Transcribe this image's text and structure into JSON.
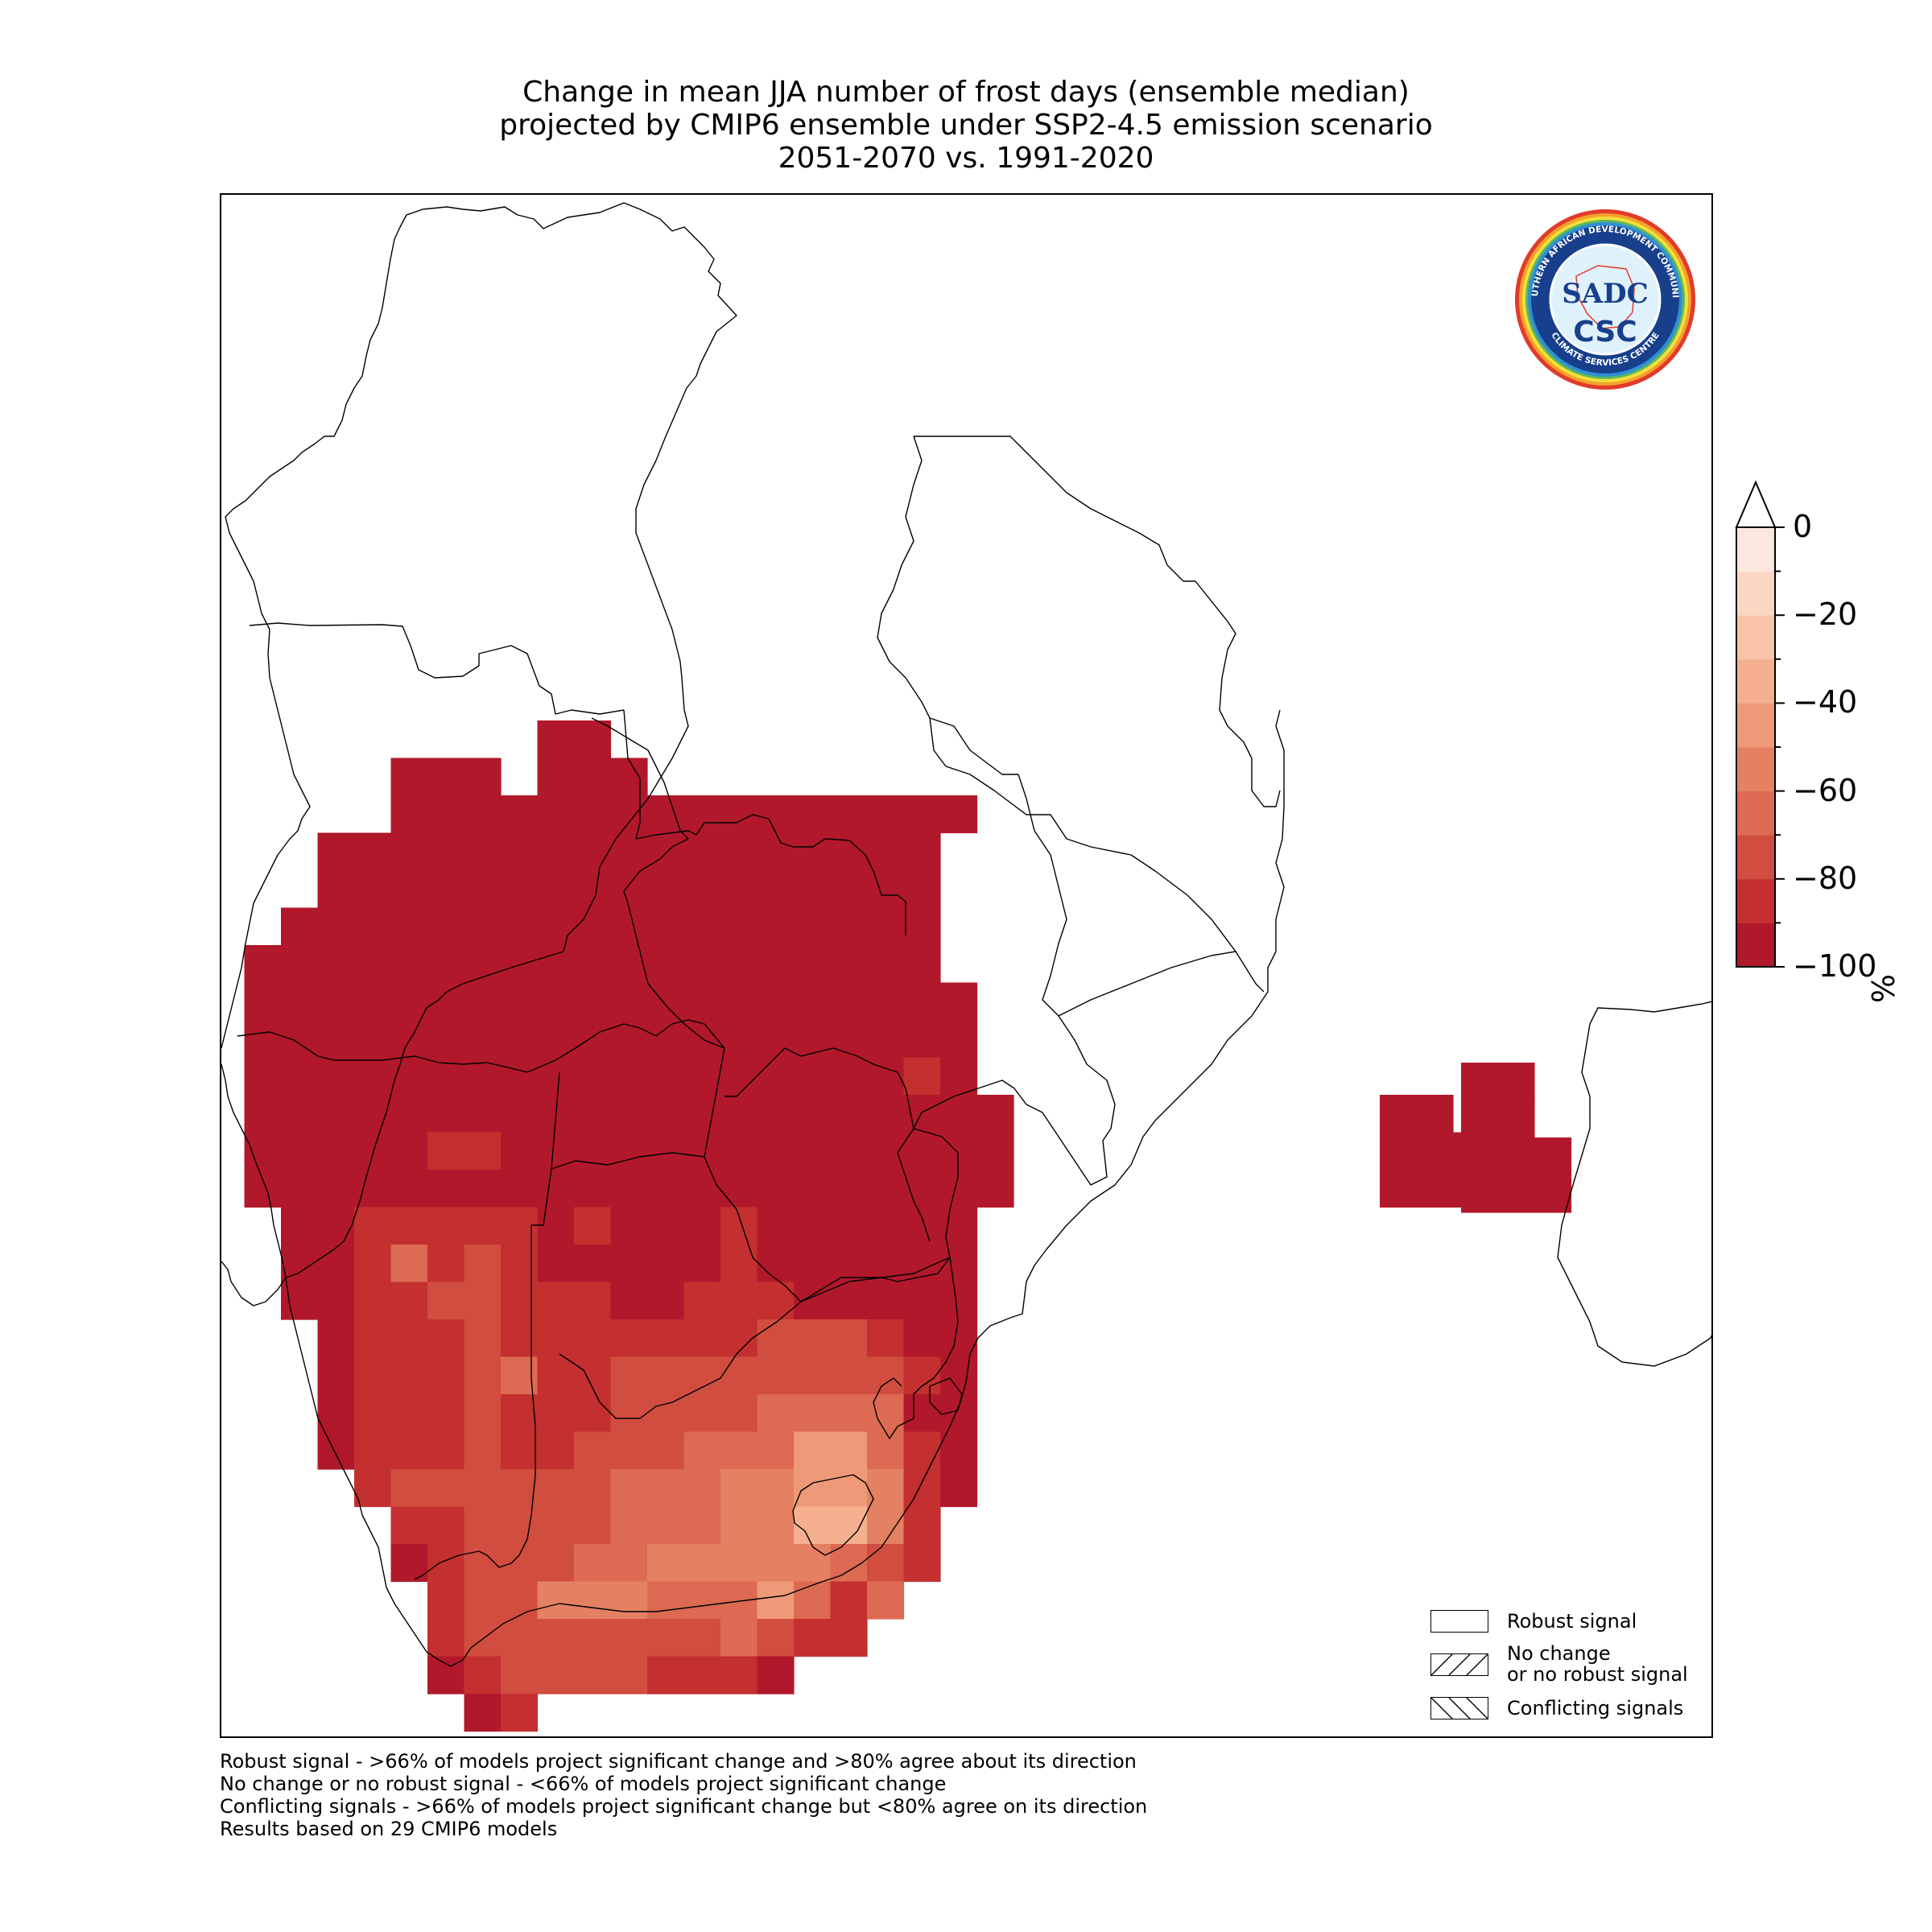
{
  "title": {
    "line1": "Change in mean JJA number of frost days (ensemble median)",
    "line2": "projected by CMIP6 ensemble under SSP2-4.5 emission scenario",
    "line3": "2051-2070 vs. 1991-2020"
  },
  "logo": {
    "ring_text_top": "SOUTHERN AFRICAN DEVELOPMENT COMMUNITY",
    "ring_text_bottom": "CLIMATE SERVICES CENTRE",
    "monogram": "SADC",
    "acronym": "CSC"
  },
  "colorbar": {
    "unit": "%",
    "min": -100,
    "max": 0,
    "extend": "max",
    "tick_labels": [
      "0",
      "−20",
      "−40",
      "−60",
      "−80",
      "−100"
    ],
    "tick_values": [
      0,
      -20,
      -40,
      -60,
      -80,
      -100
    ],
    "bins": [
      {
        "from": -100,
        "to": -90,
        "color": "#b2182b"
      },
      {
        "from": -90,
        "to": -80,
        "color": "#c3302f"
      },
      {
        "from": -80,
        "to": -70,
        "color": "#d04d3f"
      },
      {
        "from": -70,
        "to": -60,
        "color": "#dd6a52"
      },
      {
        "from": -60,
        "to": -50,
        "color": "#e58163"
      },
      {
        "from": -50,
        "to": -40,
        "color": "#ee9a78"
      },
      {
        "from": -40,
        "to": -30,
        "color": "#f4b08f"
      },
      {
        "from": -30,
        "to": -20,
        "color": "#f8c3a7"
      },
      {
        "from": -20,
        "to": -10,
        "color": "#fbd6c3"
      },
      {
        "from": -10,
        "to": 0,
        "color": "#fbe7dd"
      }
    ]
  },
  "legend": {
    "robust": "Robust signal",
    "no_change_line1": "No change",
    "no_change_line2": "or no robust signal",
    "conflicting": "Conflicting signals"
  },
  "footnotes": {
    "line1": "Robust signal - >66% of models project significant change and >80% agree about its direction",
    "line2": "No change or no robust signal - <66% of models project significant change",
    "line3": "Conflicting signals - >66% of models project significant change but <80% agree on its direction",
    "line4": "Results based on 29 CMIP6 models"
  },
  "map_data": {
    "variable": "Change in mean JJA number of frost days",
    "unit": "%",
    "note": "Grid cell values estimated from colour bins; all cells shown as robust signal",
    "rows": [
      {
        "row": 0,
        "cells": [
          [
            9,
            11,
            -95
          ]
        ]
      },
      {
        "row": 1,
        "cells": [
          [
            5,
            8,
            -95
          ],
          [
            9,
            12,
            -95
          ]
        ]
      },
      {
        "row": 2,
        "cells": [
          [
            5,
            19,
            -95
          ],
          [
            19,
            21,
            -95
          ]
        ]
      },
      {
        "row": 3,
        "cells": [
          [
            3,
            20,
            -95
          ]
        ]
      },
      {
        "row": 4,
        "cells": [
          [
            3,
            20,
            -95
          ]
        ]
      },
      {
        "row": 5,
        "cells": [
          [
            2,
            20,
            -95
          ]
        ]
      },
      {
        "row": 6,
        "cells": [
          [
            1,
            20,
            -95
          ]
        ]
      },
      {
        "row": 7,
        "cells": [
          [
            1,
            21,
            -95
          ]
        ]
      },
      {
        "row": 8,
        "cells": [
          [
            1,
            21,
            -95
          ]
        ]
      },
      {
        "row": 9,
        "cells": [
          [
            1,
            19,
            -95
          ],
          [
            19,
            20,
            -85
          ],
          [
            20,
            21,
            -95
          ]
        ]
      },
      {
        "row": 10,
        "cells": [
          [
            1,
            22,
            -95
          ],
          [
            32,
            34,
            -95
          ]
        ]
      },
      {
        "row": 11,
        "cells": [
          [
            1,
            6,
            -95
          ],
          [
            6,
            8,
            -85
          ],
          [
            8,
            22,
            -95
          ],
          [
            32,
            34,
            -95
          ],
          [
            34,
            35,
            -95
          ]
        ]
      },
      {
        "row": 12,
        "cells": [
          [
            1,
            22,
            -95
          ],
          [
            32,
            35,
            -95
          ]
        ]
      },
      {
        "row": 13,
        "cells": [
          [
            2,
            4,
            -95
          ],
          [
            4,
            9,
            -85
          ],
          [
            9,
            10,
            -95
          ],
          [
            10,
            11,
            -85
          ],
          [
            11,
            14,
            -95
          ],
          [
            14,
            15,
            -85
          ],
          [
            15,
            21,
            -95
          ]
        ]
      },
      {
        "row": 14,
        "cells": [
          [
            2,
            4,
            -95
          ],
          [
            4,
            5,
            -85
          ],
          [
            5,
            6,
            -65
          ],
          [
            6,
            7,
            -85
          ],
          [
            7,
            8,
            -75
          ],
          [
            8,
            9,
            -85
          ],
          [
            9,
            14,
            -95
          ],
          [
            14,
            15,
            -85
          ],
          [
            15,
            21,
            -95
          ]
        ]
      },
      {
        "row": 15,
        "cells": [
          [
            2,
            4,
            -95
          ],
          [
            4,
            6,
            -85
          ],
          [
            6,
            8,
            -75
          ],
          [
            8,
            9,
            -85
          ],
          [
            9,
            11,
            -85
          ],
          [
            11,
            13,
            -95
          ],
          [
            13,
            14,
            -85
          ],
          [
            14,
            16,
            -85
          ],
          [
            16,
            21,
            -95
          ]
        ]
      },
      {
        "row": 16,
        "cells": [
          [
            3,
            4,
            -95
          ],
          [
            4,
            5,
            -85
          ],
          [
            5,
            7,
            -85
          ],
          [
            7,
            8,
            -75
          ],
          [
            8,
            10,
            -85
          ],
          [
            10,
            13,
            -85
          ],
          [
            13,
            15,
            -85
          ],
          [
            15,
            16,
            -75
          ],
          [
            16,
            18,
            -75
          ],
          [
            18,
            19,
            -85
          ],
          [
            19,
            21,
            -95
          ]
        ]
      },
      {
        "row": 17,
        "cells": [
          [
            3,
            4,
            -95
          ],
          [
            4,
            7,
            -85
          ],
          [
            7,
            8,
            -75
          ],
          [
            8,
            9,
            -65
          ],
          [
            9,
            11,
            -85
          ],
          [
            11,
            18,
            -75
          ],
          [
            18,
            19,
            -75
          ],
          [
            19,
            20,
            -85
          ],
          [
            20,
            21,
            -95
          ]
        ]
      },
      {
        "row": 18,
        "cells": [
          [
            3,
            4,
            -95
          ],
          [
            4,
            7,
            -85
          ],
          [
            7,
            8,
            -75
          ],
          [
            8,
            11,
            -85
          ],
          [
            11,
            13,
            -75
          ],
          [
            13,
            15,
            -75
          ],
          [
            15,
            19,
            -65
          ],
          [
            19,
            20,
            -95
          ],
          [
            20,
            21,
            -95
          ]
        ]
      },
      {
        "row": 19,
        "cells": [
          [
            3,
            4,
            -95
          ],
          [
            4,
            5,
            -85
          ],
          [
            5,
            7,
            -85
          ],
          [
            7,
            8,
            -75
          ],
          [
            8,
            10,
            -85
          ],
          [
            10,
            13,
            -75
          ],
          [
            13,
            16,
            -65
          ],
          [
            16,
            18,
            -45
          ],
          [
            18,
            19,
            -65
          ],
          [
            19,
            20,
            -85
          ],
          [
            20,
            21,
            -95
          ]
        ]
      },
      {
        "row": 20,
        "cells": [
          [
            4,
            5,
            -85
          ],
          [
            5,
            7,
            -75
          ],
          [
            7,
            11,
            -75
          ],
          [
            11,
            14,
            -65
          ],
          [
            14,
            16,
            -55
          ],
          [
            16,
            18,
            -45
          ],
          [
            18,
            19,
            -55
          ],
          [
            19,
            20,
            -85
          ],
          [
            20,
            21,
            -95
          ]
        ]
      },
      {
        "row": 21,
        "cells": [
          [
            5,
            7,
            -85
          ],
          [
            7,
            11,
            -75
          ],
          [
            11,
            14,
            -65
          ],
          [
            14,
            16,
            -55
          ],
          [
            16,
            18,
            -35
          ],
          [
            18,
            19,
            -55
          ],
          [
            19,
            20,
            -85
          ]
        ]
      },
      {
        "row": 22,
        "cells": [
          [
            5,
            6,
            -95
          ],
          [
            6,
            7,
            -85
          ],
          [
            7,
            10,
            -75
          ],
          [
            10,
            12,
            -65
          ],
          [
            12,
            15,
            -55
          ],
          [
            15,
            17,
            -55
          ],
          [
            17,
            18,
            -65
          ],
          [
            18,
            19,
            -75
          ],
          [
            19,
            20,
            -85
          ]
        ]
      },
      {
        "row": 23,
        "cells": [
          [
            6,
            7,
            -85
          ],
          [
            7,
            9,
            -75
          ],
          [
            9,
            12,
            -55
          ],
          [
            12,
            15,
            -65
          ],
          [
            15,
            16,
            -45
          ],
          [
            16,
            17,
            -65
          ],
          [
            17,
            18,
            -85
          ],
          [
            18,
            19,
            -65
          ]
        ]
      },
      {
        "row": 24,
        "cells": [
          [
            6,
            7,
            -85
          ],
          [
            7,
            14,
            -75
          ],
          [
            14,
            15,
            -65
          ],
          [
            15,
            16,
            -75
          ],
          [
            16,
            18,
            -85
          ]
        ]
      },
      {
        "row": 25,
        "cells": [
          [
            6,
            7,
            -95
          ],
          [
            7,
            8,
            -85
          ],
          [
            8,
            12,
            -75
          ],
          [
            12,
            15,
            -85
          ],
          [
            15,
            16,
            -95
          ]
        ]
      },
      {
        "row": 26,
        "cells": [
          [
            7,
            8,
            -95
          ],
          [
            8,
            9,
            -85
          ]
        ]
      }
    ],
    "madagascar_cells": [
      {
        "row": 9,
        "cells": [
          [
            34,
            36,
            -95
          ]
        ]
      },
      {
        "row": 10,
        "cells": [
          [
            34,
            36,
            -95
          ]
        ]
      },
      {
        "row": 11,
        "cells": [
          [
            34,
            37,
            -95
          ]
        ]
      },
      {
        "row": 12,
        "cells": [
          [
            34,
            37,
            -95
          ]
        ]
      }
    ]
  }
}
